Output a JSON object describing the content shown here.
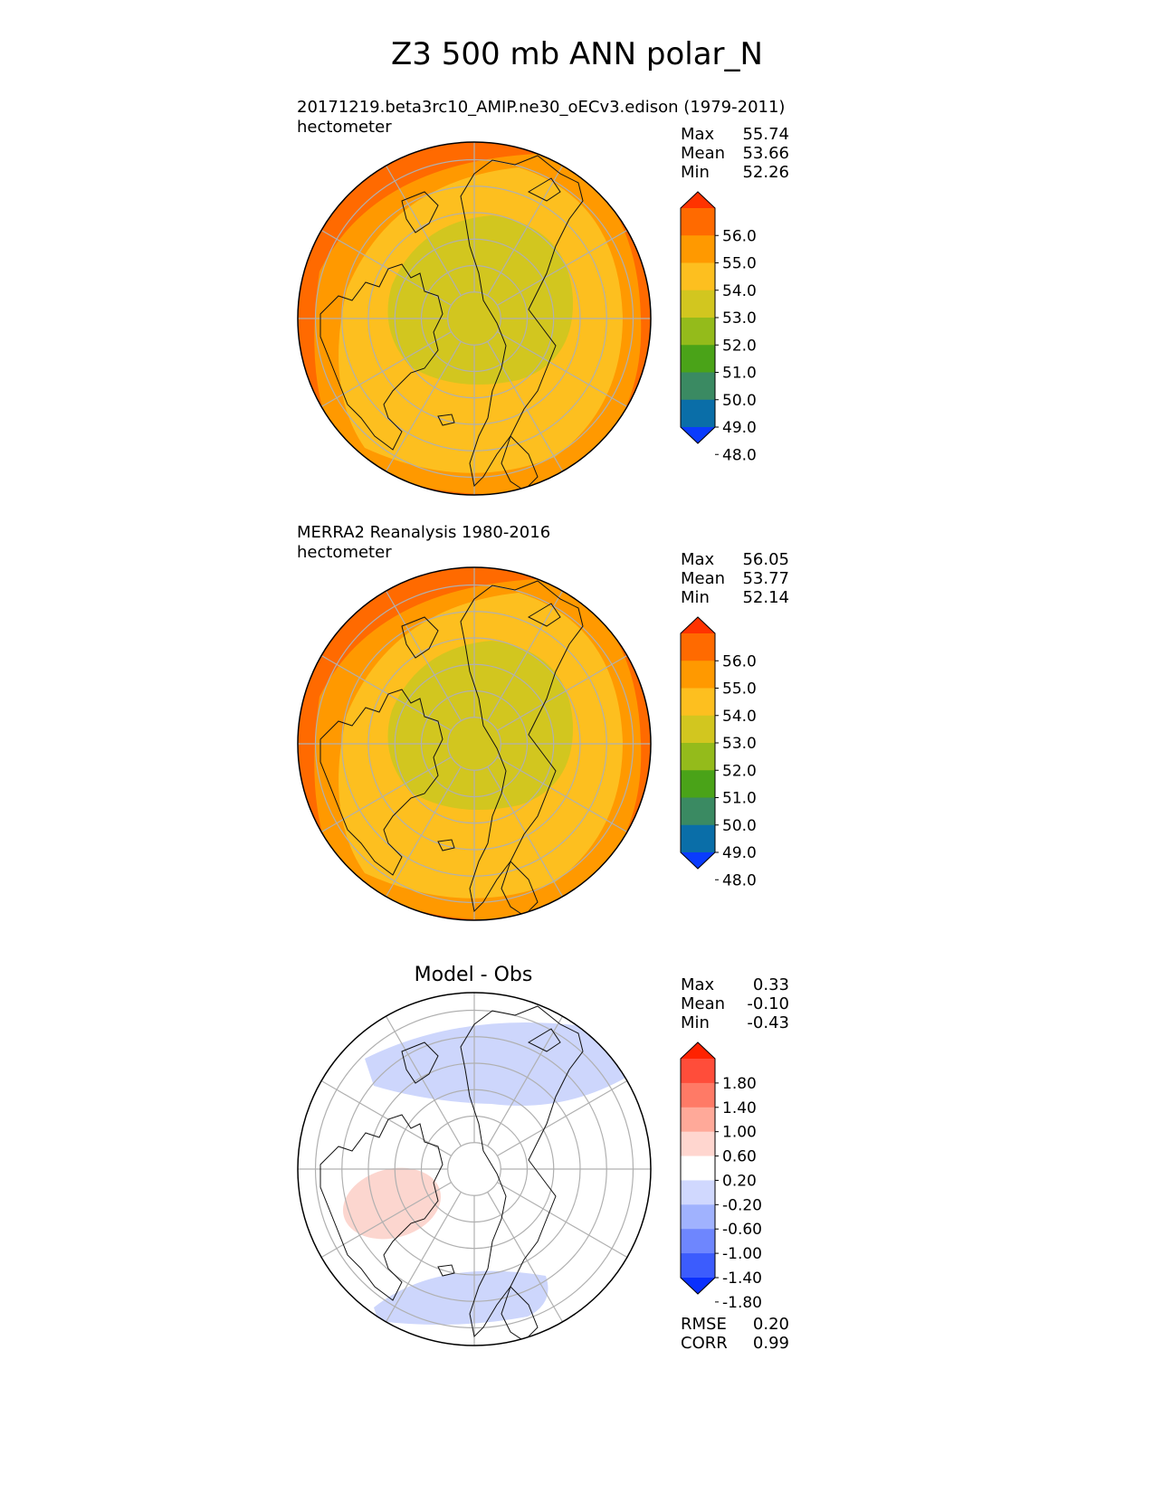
{
  "main_title": "Z3 500 mb ANN polar_N",
  "panels": [
    {
      "title_line1": "20171219.beta3rc10_AMIP.ne30_oECv3.edison (1979-2011)",
      "title_line2": "hectometer",
      "stats": {
        "max_label": "Max",
        "max": "55.74",
        "mean_label": "Mean",
        "mean": "53.66",
        "min_label": "Min",
        "min": "52.26"
      },
      "field": "model"
    },
    {
      "title_line1": "MERRA2 Reanalysis 1980-2016",
      "title_line2": "hectometer",
      "stats": {
        "max_label": "Max",
        "max": "56.05",
        "mean_label": "Mean",
        "mean": "53.77",
        "min_label": "Min",
        "min": "52.14"
      },
      "field": "obs"
    },
    {
      "title_line1": "Model - Obs",
      "title_line2": "",
      "stats": {
        "max_label": "Max",
        "max": "0.33",
        "mean_label": "Mean",
        "mean": "-0.10",
        "min_label": "Min",
        "min": "-0.43"
      },
      "metrics": {
        "rmse_label": "RMSE",
        "rmse": "0.20",
        "corr_label": "CORR",
        "corr": "0.99"
      },
      "field": "diff"
    }
  ],
  "colorbar_main": {
    "labels": [
      "56.0",
      "55.0",
      "54.0",
      "53.0",
      "52.0",
      "51.0",
      "50.0",
      "49.0",
      "48.0"
    ],
    "colors": [
      "#ff3300",
      "#ff6a00",
      "#ff9900",
      "#fdbf1f",
      "#d2c61f",
      "#94bb1b",
      "#4aa318",
      "#3a8a62",
      "#0a6ea8",
      "#0a3cfd"
    ]
  },
  "colorbar_diff": {
    "labels": [
      "1.80",
      "1.40",
      "1.00",
      "0.60",
      "0.20",
      "-0.20",
      "-0.60",
      "-1.00",
      "-1.40",
      "-1.80"
    ],
    "colors": [
      "#ff2200",
      "#ff4d3a",
      "#ff7a66",
      "#ffa999",
      "#ffd6cf",
      "#ffffff",
      "#d0d8fe",
      "#a0b2fe",
      "#6e86fe",
      "#3c5cfd",
      "#0a30fd"
    ]
  },
  "field_colors": {
    "ring_outer": "#ff6a00",
    "ring_mid": "#ff9900",
    "ring_inner": "#fdbf1f",
    "core": "#d2c61f",
    "diff_neg": "#cdd6fc",
    "diff_pos": "#fcd6cf"
  }
}
